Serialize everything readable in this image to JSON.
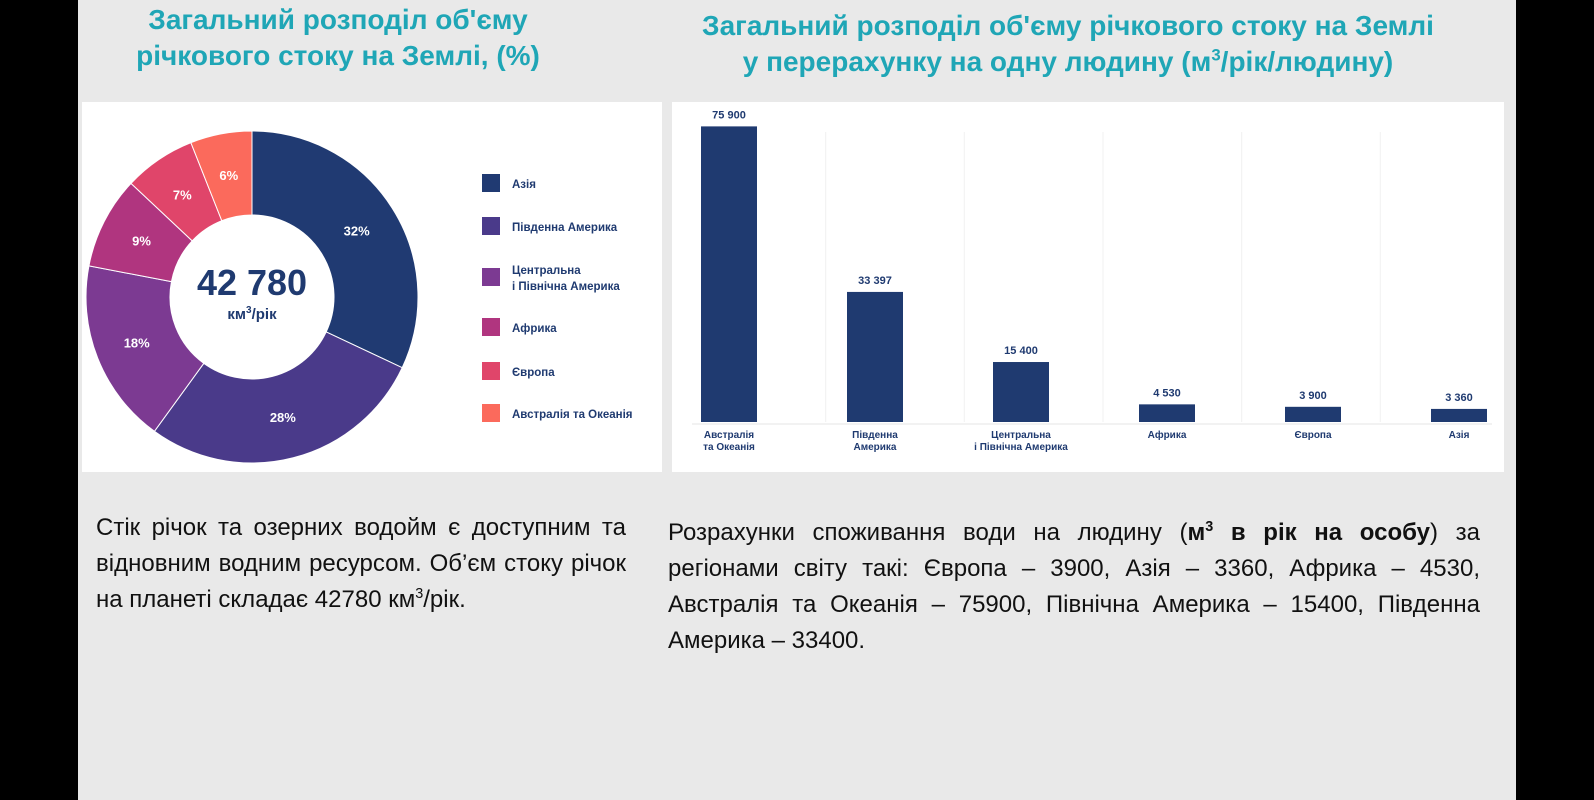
{
  "texts": {
    "left_title": "Загальний розподіл об'єму річкового стоку на Землі, (%)",
    "right_title_line1": "Загальний розподіл об'єму річкового стоку на Землі",
    "right_title_line2_main": "у перерахунку на одну людину (м",
    "right_title_sup": "3",
    "right_title_line2_end": "/рік/людину)",
    "left_text_main": "Стік річок та озерних водойм є доступним та відновним водним ресурсом. Об’єм стоку річок на планеті складає 42780 км",
    "left_text_sup": "3",
    "left_text_end": "/рік.",
    "right_text_start": "Розрахунки споживання води на людину (",
    "right_text_bold1": "м",
    "right_text_bold_sup": "3",
    "right_text_bold2": " в рік на особу",
    "right_text_end": ") за регіонами світу такі: Європа – 3900, Азія – 3360, Африка – 4530, Австралія та Океанія – 75900, Північна Америка – 15400, Південна Америка – 33400."
  },
  "chart_data": [
    {
      "type": "pie",
      "center_value": "42 780",
      "center_unit_main": "км",
      "center_unit_sup": "3",
      "center_unit_end": "/рік",
      "slices": [
        {
          "label": "Азія",
          "value": 32,
          "color": "#203a72"
        },
        {
          "label": "Південна Америка",
          "value": 28,
          "color": "#4a3a8a"
        },
        {
          "label": "Центральна і Північна Америка",
          "value": 18,
          "color": "#7c3a92"
        },
        {
          "label": "Африка",
          "value": 9,
          "color": "#b0357f"
        },
        {
          "label": "Європа",
          "value": 7,
          "color": "#e0456a"
        },
        {
          "label": "Австралія та Океанія",
          "value": 6,
          "color": "#fb6a5c"
        }
      ],
      "legend": [
        {
          "lines": [
            "Азія"
          ],
          "color": "#203a72"
        },
        {
          "lines": [
            "Південна Америка"
          ],
          "color": "#4a3a8a"
        },
        {
          "lines": [
            "Центральна",
            "і Північна Америка"
          ],
          "color": "#7c3a92"
        },
        {
          "lines": [
            "Африка"
          ],
          "color": "#b0357f"
        },
        {
          "lines": [
            "Європа"
          ],
          "color": "#e0456a"
        },
        {
          "lines": [
            "Австралія та Океанія"
          ],
          "color": "#fb6a5c"
        }
      ],
      "legend_position": "right"
    },
    {
      "type": "bar",
      "bar_color": "#1f3a70",
      "ylim": [
        0,
        76000
      ],
      "bars": [
        {
          "category_lines": [
            "Австралія",
            "та Океанія"
          ],
          "value": 75900,
          "label": "75 900"
        },
        {
          "category_lines": [
            "Південна",
            "Америка"
          ],
          "value": 33397,
          "label": "33 397"
        },
        {
          "category_lines": [
            "Центральна",
            "і Північна Америка"
          ],
          "value": 15400,
          "label": "15 400"
        },
        {
          "category_lines": [
            "Африка"
          ],
          "value": 4530,
          "label": "4 530"
        },
        {
          "category_lines": [
            "Європа"
          ],
          "value": 3900,
          "label": "3 900"
        },
        {
          "category_lines": [
            "Азія"
          ],
          "value": 3360,
          "label": "3 360"
        }
      ]
    }
  ]
}
